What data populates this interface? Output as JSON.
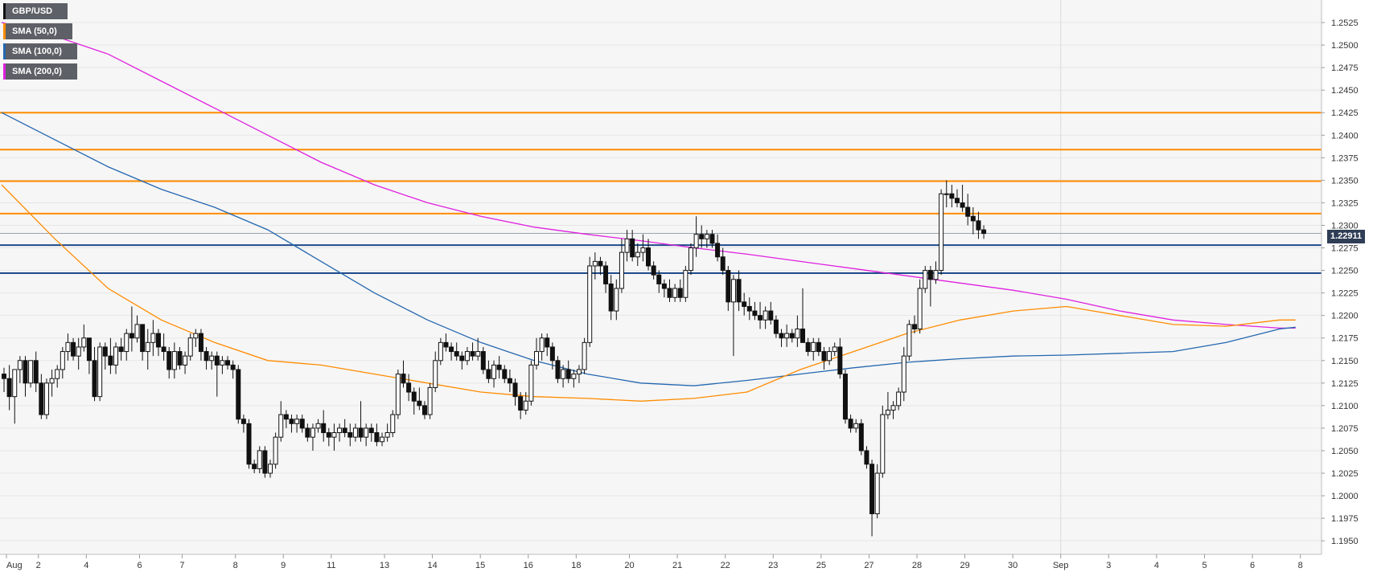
{
  "legend": [
    {
      "label": "GBP/USD",
      "color": "#111111"
    },
    {
      "label": "SMA (50,0)",
      "color": "#ff8c00"
    },
    {
      "label": "SMA (100,0)",
      "color": "#2467b0"
    },
    {
      "label": "SMA (200,0)",
      "color": "#e020e0"
    }
  ],
  "last_price_label": "1.22911",
  "chart_data": {
    "type": "candlestick",
    "instrument": "GBP/USD",
    "ylim": [
      1.1935,
      1.255
    ],
    "y_ticks": [
      "1.1950",
      "1.1975",
      "1.2000",
      "1.2025",
      "1.2050",
      "1.2075",
      "1.2100",
      "1.2125",
      "1.2150",
      "1.2175",
      "1.2200",
      "1.2225",
      "1.2250",
      "1.2275",
      "1.2300",
      "1.2325",
      "1.2350",
      "1.2375",
      "1.2400",
      "1.2425",
      "1.2450",
      "1.2475",
      "1.2500",
      "1.2525"
    ],
    "x_ticks": [
      {
        "label": "Aug",
        "bar": 0
      },
      {
        "label": "2",
        "bar": 6
      },
      {
        "label": "4",
        "bar": 15
      },
      {
        "label": "6",
        "bar": 25
      },
      {
        "label": "7",
        "bar": 33
      },
      {
        "label": "8",
        "bar": 43
      },
      {
        "label": "9",
        "bar": 52
      },
      {
        "label": "11",
        "bar": 61
      },
      {
        "label": "13",
        "bar": 71
      },
      {
        "label": "14",
        "bar": 80
      },
      {
        "label": "15",
        "bar": 89
      },
      {
        "label": "16",
        "bar": 98
      },
      {
        "label": "18",
        "bar": 107
      },
      {
        "label": "20",
        "bar": 117
      },
      {
        "label": "21",
        "bar": 126
      },
      {
        "label": "22",
        "bar": 135
      },
      {
        "label": "23",
        "bar": 144
      },
      {
        "label": "25",
        "bar": 153
      },
      {
        "label": "27",
        "bar": 162
      },
      {
        "label": "28",
        "bar": 171
      },
      {
        "label": "29",
        "bar": 180
      },
      {
        "label": "30",
        "bar": 189
      },
      {
        "label": "Sep",
        "bar": 198
      },
      {
        "label": "3",
        "bar": 207
      },
      {
        "label": "4",
        "bar": 216
      },
      {
        "label": "5",
        "bar": 225
      },
      {
        "label": "6",
        "bar": 234
      },
      {
        "label": "8",
        "bar": 243
      }
    ],
    "resistance_levels": [
      1.2425,
      1.2384,
      1.2349,
      1.2313
    ],
    "support_levels": [
      1.2278,
      1.2247
    ],
    "last_price": 1.22911,
    "candles_ohlc_compact": [
      1.2135,
      1.2142,
      1.2115,
      1.213,
      1.213,
      1.2145,
      1.2095,
      1.211,
      1.211,
      1.214,
      1.208,
      1.214,
      1.214,
      1.2155,
      1.2125,
      1.215,
      1.215,
      1.2155,
      1.211,
      1.2125,
      1.2125,
      1.215,
      1.212,
      1.215,
      1.215,
      1.216,
      1.2115,
      1.2125,
      1.2125,
      1.2135,
      1.2085,
      1.209,
      1.209,
      1.213,
      1.2085,
      1.2125,
      1.2125,
      1.214,
      1.211,
      1.213,
      1.213,
      1.2145,
      1.212,
      1.214,
      1.214,
      1.2165,
      1.213,
      1.216,
      1.216,
      1.218,
      1.215,
      1.217,
      1.217,
      1.2175,
      1.215,
      1.2155,
      1.2155,
      1.2175,
      1.214,
      1.2165,
      1.2165,
      1.219,
      1.216,
      1.2175,
      1.2175,
      1.2175,
      1.2135,
      1.215,
      1.215,
      1.2165,
      1.2105,
      1.211,
      1.211,
      1.217,
      1.2105,
      1.2165,
      1.2165,
      1.217,
      1.214,
      1.2155,
      1.2155,
      1.2175,
      1.2135,
      1.2145,
      1.2145,
      1.217,
      1.2135,
      1.2165,
      1.2165,
      1.2175,
      1.215,
      1.216,
      1.216,
      1.2185,
      1.215,
      1.218,
      1.218,
      1.221,
      1.216,
      1.2175,
      1.2175,
      1.22,
      1.217,
      1.219,
      1.219,
      1.219,
      1.215,
      1.216,
      1.216,
      1.2185,
      1.214,
      1.217,
      1.217,
      1.2195,
      1.2155,
      1.218,
      1.218,
      1.2185,
      1.2155,
      1.2165,
      1.2165,
      1.218,
      1.215,
      1.216,
      1.216,
      1.2165,
      1.213,
      1.214,
      1.214,
      1.217,
      1.213,
      1.216,
      1.216,
      1.2165,
      1.214,
      1.2145,
      1.2145,
      1.216,
      1.2135,
      1.2155,
      1.2155,
      1.218,
      1.215,
      1.2175,
      1.2175,
      1.2185,
      1.2165,
      1.218,
      1.218,
      1.2185,
      1.215,
      1.216,
      1.216,
      1.2165,
      1.214,
      1.215,
      1.215,
      1.216,
      1.214,
      1.2155,
      1.2155,
      1.216,
      1.211,
      1.2145,
      1.2145,
      1.2155,
      1.2135,
      1.215,
      1.215,
      1.2155,
      1.214,
      1.2145,
      1.2145,
      1.215,
      1.213,
      1.214,
      1.214,
      1.2145,
      1.208,
      1.2085,
      1.2085,
      1.209,
      1.207,
      1.208,
      1.208,
      1.2085,
      1.203,
      1.2035,
      1.2035,
      1.204,
      1.2025,
      1.203,
      1.203,
      1.2055,
      1.2025,
      1.205,
      1.205,
      1.2055,
      1.202,
      1.2025,
      1.2025,
      1.204,
      1.202,
      1.2035,
      1.2035,
      1.207,
      1.203,
      1.2065,
      1.2065,
      1.2105,
      1.206,
      1.209,
      1.209,
      1.2095,
      1.2075,
      1.2085,
      1.2085,
      1.209,
      1.207,
      1.208,
      1.208,
      1.209,
      1.207,
      1.2085,
      1.2085,
      1.209,
      1.207,
      1.2075,
      1.2075,
      1.208,
      1.206,
      1.2065,
      1.2065,
      1.208,
      1.205,
      1.2075,
      1.2075,
      1.2085,
      1.207,
      1.208,
      1.208,
      1.2095,
      1.206,
      1.207,
      1.207,
      1.2075,
      1.2055,
      1.2065,
      1.2065,
      1.208,
      1.205,
      1.207,
      1.207,
      1.208,
      1.206,
      1.2075,
      1.2075,
      1.2085,
      1.2065,
      1.207,
      1.207,
      1.208,
      1.2055,
      1.2065,
      1.2065,
      1.208,
      1.206,
      1.2075,
      1.2075,
      1.2105,
      1.206,
      1.2065,
      1.2065,
      1.208,
      1.2055,
      1.2075,
      1.2075,
      1.208,
      1.206,
      1.207,
      1.207,
      1.208,
      1.2055,
      1.206,
      1.206,
      1.207,
      1.2055,
      1.2065,
      1.2065,
      1.208,
      1.206,
      1.207,
      1.207,
      1.2095,
      1.2065,
      1.209,
      1.209,
      1.214,
      1.2085,
      1.2135,
      1.2135,
      1.215,
      1.212,
      1.2125,
      1.2125,
      1.2135,
      1.2105,
      1.2115,
      1.2115,
      1.212,
      1.209,
      1.2105,
      1.2105,
      1.212,
      1.2095,
      1.21,
      1.21,
      1.2105,
      1.2085,
      1.209,
      1.209,
      1.2125,
      1.2085,
      1.212,
      1.212,
      1.216,
      1.2115,
      1.215,
      1.215,
      1.2175,
      1.2145,
      1.217,
      1.217,
      1.218,
      1.216,
      1.2165,
      1.2165,
      1.217,
      1.215,
      1.216,
      1.216,
      1.217,
      1.215,
      1.2155,
      1.2155,
      1.216,
      1.214,
      1.215,
      1.215,
      1.2165,
      1.2145,
      1.216,
      1.216,
      1.217,
      1.215,
      1.2155,
      1.2155,
      1.2175,
      1.215,
      1.216,
      1.216,
      1.2165,
      1.2135,
      1.214,
      1.214,
      1.215,
      1.2125,
      1.213,
      1.213,
      1.215,
      1.212,
      1.2145,
      1.2145,
      1.2155,
      1.213,
      1.214,
      1.214,
      1.2145,
      1.2125,
      1.213,
      1.213,
      1.214,
      1.2115,
      1.2125,
      1.2125,
      1.213,
      1.21,
      1.211,
      1.211,
      1.2115,
      1.2085,
      1.2095,
      1.2095,
      1.2115,
      1.209,
      1.2105,
      1.2105,
      1.215,
      1.21,
      1.2145,
      1.2145,
      1.2175,
      1.214,
      1.216,
      1.216,
      1.218,
      1.215,
      1.2175,
      1.2175,
      1.218,
      1.2155,
      1.2165,
      1.2165,
      1.217,
      1.214,
      1.215,
      1.215,
      1.2155,
      1.2125,
      1.213,
      1.213,
      1.2145,
      1.212,
      1.214,
      1.214,
      1.215,
      1.2125,
      1.213,
      1.213,
      1.214,
      1.212,
      1.2135,
      1.2135,
      1.2145,
      1.2125,
      1.214,
      1.214,
      1.2175,
      1.2135,
      1.217,
      1.217,
      1.2265,
      1.2165,
      1.2255,
      1.2255,
      1.227,
      1.224,
      1.226,
      1.226,
      1.2265,
      1.2245,
      1.2255,
      1.2255,
      1.226,
      1.2225,
      1.2235,
      1.2235,
      1.2245,
      1.2195,
      1.2205,
      1.2205,
      1.224,
      1.2195,
      1.223,
      1.223,
      1.2285,
      1.2225,
      1.227,
      1.227,
      1.2295,
      1.226,
      1.2285,
      1.2285,
      1.2295,
      1.226,
      1.2265,
      1.2265,
      1.228,
      1.2255,
      1.227,
      1.227,
      1.229,
      1.226,
      1.2275,
      1.2275,
      1.2285,
      1.225,
      1.2255,
      1.2255,
      1.226,
      1.224,
      1.2245,
      1.2245,
      1.225,
      1.2225,
      1.2235,
      1.2235,
      1.224,
      1.222,
      1.223,
      1.223,
      1.224,
      1.2215,
      1.222,
      1.222,
      1.2235,
      1.2215,
      1.223,
      1.223,
      1.224,
      1.2215,
      1.222,
      1.222,
      1.2255,
      1.2215,
      1.225,
      1.225,
      1.228,
      1.2245,
      1.2275,
      1.2275,
      1.231,
      1.2265,
      1.229,
      1.229,
      1.23,
      1.2275,
      1.2285,
      1.2285,
      1.2295,
      1.2275,
      1.229,
      1.229,
      1.2295,
      1.2275,
      1.228,
      1.228,
      1.229,
      1.226,
      1.2265,
      1.2265,
      1.2275,
      1.2245,
      1.225,
      1.225,
      1.2255,
      1.2205,
      1.2215,
      1.2215,
      1.2245,
      1.2155,
      1.224,
      1.224,
      1.225,
      1.2205,
      1.2215,
      1.2215,
      1.2225,
      1.22,
      1.221,
      1.221,
      1.222,
      1.2195,
      1.2205,
      1.2205,
      1.2215,
      1.2195,
      1.22,
      1.22,
      1.2215,
      1.2185,
      1.2195,
      1.2195,
      1.221,
      1.2185,
      1.2205,
      1.2205,
      1.2215,
      1.219,
      1.2195,
      1.2195,
      1.22,
      1.2175,
      1.218,
      1.218,
      1.2185,
      1.2165,
      1.2175,
      1.2175,
      1.219,
      1.2165,
      1.218,
      1.218,
      1.2185,
      1.217,
      1.2175,
      1.2175,
      1.22,
      1.2165,
      1.2185,
      1.2185,
      1.223,
      1.2175,
      1.217,
      1.217,
      1.2175,
      1.2155,
      1.216,
      1.216,
      1.2175,
      1.215,
      1.217,
      1.217,
      1.2175,
      1.2155,
      1.216,
      1.216,
      1.2165,
      1.214,
      1.215,
      1.215,
      1.2165,
      1.2145,
      1.216,
      1.216,
      1.217,
      1.2155,
      1.2165,
      1.2165,
      1.2175,
      1.213,
      1.2135,
      1.2135,
      1.214,
      1.208,
      1.2085,
      1.2085,
      1.209,
      1.207,
      1.2075,
      1.2075,
      1.2085,
      1.207,
      1.208,
      1.208,
      1.2085,
      1.2045,
      1.205,
      1.205,
      1.2055,
      1.203,
      1.2035,
      1.2035,
      1.204,
      1.1955,
      1.198,
      1.198,
      1.2035,
      1.1975,
      1.2025,
      1.2025,
      1.21,
      1.202,
      1.209,
      1.209,
      1.2115,
      1.2085,
      1.2095,
      1.2095,
      1.2105,
      1.2085,
      1.21,
      1.21,
      1.212,
      1.2095,
      1.2115,
      1.2115,
      1.2165,
      1.2105,
      1.2155,
      1.2155,
      1.2195,
      1.215,
      1.219,
      1.219,
      1.22,
      1.218,
      1.2185,
      1.2185,
      1.224,
      1.218,
      1.223,
      1.223,
      1.2255,
      1.2225,
      1.225,
      1.225,
      1.2255,
      1.221,
      1.224,
      1.224,
      1.226,
      1.2235,
      1.225,
      1.225,
      1.234,
      1.2245,
      1.2335,
      1.2335,
      1.235,
      1.232,
      1.2335,
      1.2335,
      1.2345,
      1.232,
      1.233,
      1.233,
      1.234,
      1.232,
      1.2325,
      1.2325,
      1.2345,
      1.2315,
      1.232,
      1.232,
      1.2335,
      1.23,
      1.231,
      1.231,
      1.232,
      1.229,
      1.2305,
      1.2305,
      1.2315,
      1.2285,
      1.2295,
      1.2295,
      1.23,
      1.2285,
      1.2291
    ],
    "sma50": [
      [
        0,
        1.2345
      ],
      [
        10,
        1.2285
      ],
      [
        20,
        1.223
      ],
      [
        30,
        1.2195
      ],
      [
        40,
        1.217
      ],
      [
        50,
        1.215
      ],
      [
        60,
        1.2145
      ],
      [
        70,
        1.2135
      ],
      [
        80,
        1.2125
      ],
      [
        90,
        1.2115
      ],
      [
        100,
        1.211
      ],
      [
        110,
        1.2108
      ],
      [
        120,
        1.2105
      ],
      [
        130,
        1.2108
      ],
      [
        140,
        1.2115
      ],
      [
        150,
        1.214
      ],
      [
        160,
        1.216
      ],
      [
        170,
        1.218
      ],
      [
        180,
        1.2195
      ],
      [
        190,
        1.2205
      ],
      [
        200,
        1.221
      ],
      [
        205,
        1.2205
      ],
      [
        210,
        1.22
      ],
      [
        220,
        1.219
      ],
      [
        230,
        1.2188
      ],
      [
        240,
        1.2195
      ],
      [
        243,
        1.2195
      ]
    ],
    "sma100": [
      [
        0,
        1.2425
      ],
      [
        10,
        1.2395
      ],
      [
        20,
        1.2365
      ],
      [
        30,
        1.234
      ],
      [
        40,
        1.232
      ],
      [
        50,
        1.2295
      ],
      [
        60,
        1.226
      ],
      [
        70,
        1.2225
      ],
      [
        80,
        1.2195
      ],
      [
        90,
        1.217
      ],
      [
        100,
        1.215
      ],
      [
        110,
        1.2135
      ],
      [
        120,
        1.2125
      ],
      [
        130,
        1.2122
      ],
      [
        140,
        1.2128
      ],
      [
        150,
        1.2135
      ],
      [
        160,
        1.2142
      ],
      [
        170,
        1.2148
      ],
      [
        180,
        1.2152
      ],
      [
        190,
        1.2155
      ],
      [
        200,
        1.2156
      ],
      [
        210,
        1.2158
      ],
      [
        220,
        1.216
      ],
      [
        230,
        1.217
      ],
      [
        240,
        1.2185
      ],
      [
        243,
        1.2187
      ]
    ],
    "sma200": [
      [
        0,
        1.2525
      ],
      [
        10,
        1.251
      ],
      [
        20,
        1.249
      ],
      [
        30,
        1.246
      ],
      [
        40,
        1.243
      ],
      [
        50,
        1.24
      ],
      [
        60,
        1.237
      ],
      [
        70,
        1.2345
      ],
      [
        80,
        1.2325
      ],
      [
        90,
        1.231
      ],
      [
        100,
        1.2298
      ],
      [
        110,
        1.229
      ],
      [
        120,
        1.2283
      ],
      [
        130,
        1.2275
      ],
      [
        140,
        1.2268
      ],
      [
        150,
        1.226
      ],
      [
        160,
        1.2252
      ],
      [
        170,
        1.2244
      ],
      [
        180,
        1.2236
      ],
      [
        190,
        1.2228
      ],
      [
        200,
        1.2218
      ],
      [
        210,
        1.2205
      ],
      [
        220,
        1.2195
      ],
      [
        230,
        1.219
      ],
      [
        240,
        1.2186
      ],
      [
        243,
        1.2186
      ]
    ]
  }
}
